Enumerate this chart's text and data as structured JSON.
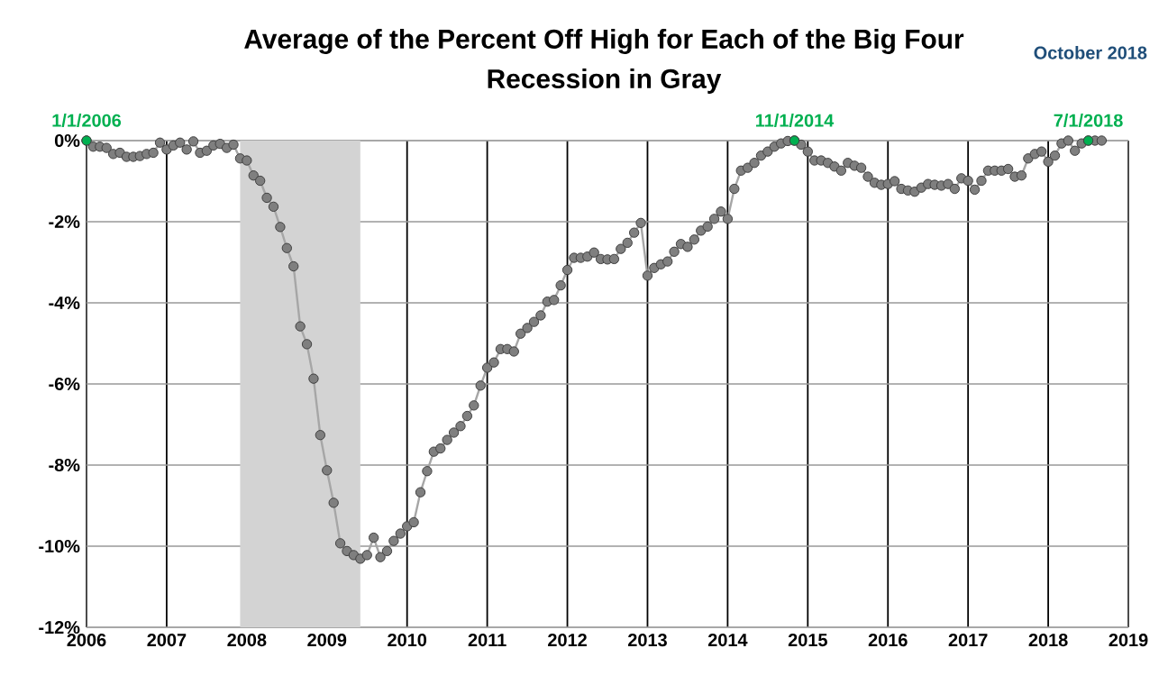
{
  "chart_data": {
    "type": "line",
    "title": "Average of the Percent Off High for Each of the Big Four",
    "subtitle": "Recession in Gray",
    "x": [
      "2006-01",
      "2006-02",
      "2006-03",
      "2006-04",
      "2006-05",
      "2006-06",
      "2006-07",
      "2006-08",
      "2006-09",
      "2006-10",
      "2006-11",
      "2006-12",
      "2007-01",
      "2007-02",
      "2007-03",
      "2007-04",
      "2007-05",
      "2007-06",
      "2007-07",
      "2007-08",
      "2007-09",
      "2007-10",
      "2007-11",
      "2007-12",
      "2008-01",
      "2008-02",
      "2008-03",
      "2008-04",
      "2008-05",
      "2008-06",
      "2008-07",
      "2008-08",
      "2008-09",
      "2008-10",
      "2008-11",
      "2008-12",
      "2009-01",
      "2009-02",
      "2009-03",
      "2009-04",
      "2009-05",
      "2009-06",
      "2009-07",
      "2009-08",
      "2009-09",
      "2009-10",
      "2009-11",
      "2009-12",
      "2010-01",
      "2010-02",
      "2010-03",
      "2010-04",
      "2010-05",
      "2010-06",
      "2010-07",
      "2010-08",
      "2010-09",
      "2010-10",
      "2010-11",
      "2010-12",
      "2011-01",
      "2011-02",
      "2011-03",
      "2011-04",
      "2011-05",
      "2011-06",
      "2011-07",
      "2011-08",
      "2011-09",
      "2011-10",
      "2011-11",
      "2011-12",
      "2012-01",
      "2012-02",
      "2012-03",
      "2012-04",
      "2012-05",
      "2012-06",
      "2012-07",
      "2012-08",
      "2012-09",
      "2012-10",
      "2012-11",
      "2012-12",
      "2013-01",
      "2013-02",
      "2013-03",
      "2013-04",
      "2013-05",
      "2013-06",
      "2013-07",
      "2013-08",
      "2013-09",
      "2013-10",
      "2013-11",
      "2013-12",
      "2014-01",
      "2014-02",
      "2014-03",
      "2014-04",
      "2014-05",
      "2014-06",
      "2014-07",
      "2014-08",
      "2014-09",
      "2014-10",
      "2014-11",
      "2014-12",
      "2015-01",
      "2015-02",
      "2015-03",
      "2015-04",
      "2015-05",
      "2015-06",
      "2015-07",
      "2015-08",
      "2015-09",
      "2015-10",
      "2015-11",
      "2015-12",
      "2016-01",
      "2016-02",
      "2016-03",
      "2016-04",
      "2016-05",
      "2016-06",
      "2016-07",
      "2016-08",
      "2016-09",
      "2016-10",
      "2016-11",
      "2016-12",
      "2017-01",
      "2017-02",
      "2017-03",
      "2017-04",
      "2017-05",
      "2017-06",
      "2017-07",
      "2017-08",
      "2017-09",
      "2017-10",
      "2017-11",
      "2017-12",
      "2018-01",
      "2018-02",
      "2018-03",
      "2018-04",
      "2018-05",
      "2018-06",
      "2018-07",
      "2018-08",
      "2018-09"
    ],
    "series": [
      {
        "color": "#7f7f7f",
        "values": [
          0,
          -0.15,
          -0.15,
          -0.18,
          -0.33,
          -0.3,
          -0.4,
          -0.4,
          -0.38,
          -0.33,
          -0.3,
          -0.05,
          -0.22,
          -0.12,
          -0.05,
          -0.22,
          -0.02,
          -0.3,
          -0.25,
          -0.12,
          -0.08,
          -0.18,
          -0.1,
          -0.44,
          -0.49,
          -0.86,
          -0.99,
          -1.41,
          -1.63,
          -2.13,
          -2.65,
          -3.1,
          -4.58,
          -5.02,
          -5.87,
          -7.26,
          -8.13,
          -8.93,
          -9.93,
          -10.12,
          -10.22,
          -10.31,
          -10.22,
          -9.79,
          -10.27,
          -10.12,
          -9.87,
          -9.69,
          -9.51,
          -9.41,
          -8.67,
          -8.15,
          -7.67,
          -7.59,
          -7.38,
          -7.2,
          -7.04,
          -6.79,
          -6.53,
          -6.04,
          -5.6,
          -5.47,
          -5.14,
          -5.14,
          -5.2,
          -4.76,
          -4.62,
          -4.47,
          -4.31,
          -3.97,
          -3.93,
          -3.57,
          -3.19,
          -2.89,
          -2.89,
          -2.86,
          -2.76,
          -2.92,
          -2.93,
          -2.92,
          -2.67,
          -2.52,
          -2.27,
          -2.03,
          -3.33,
          -3.14,
          -3.05,
          -2.98,
          -2.74,
          -2.55,
          -2.62,
          -2.44,
          -2.22,
          -2.12,
          -1.93,
          -1.75,
          -1.93,
          -1.19,
          -0.74,
          -0.67,
          -0.55,
          -0.37,
          -0.27,
          -0.15,
          -0.07,
          -0.01,
          0,
          -0.1,
          -0.27,
          -0.49,
          -0.49,
          -0.55,
          -0.64,
          -0.74,
          -0.55,
          -0.62,
          -0.67,
          -0.89,
          -1.04,
          -1.09,
          -1.07,
          -1.0,
          -1.19,
          -1.23,
          -1.26,
          -1.16,
          -1.07,
          -1.09,
          -1.11,
          -1.07,
          -1.19,
          -0.93,
          -0.99,
          -1.21,
          -0.99,
          -0.74,
          -0.74,
          -0.74,
          -0.7,
          -0.89,
          -0.86,
          -0.44,
          -0.33,
          -0.27,
          -0.52,
          -0.37,
          -0.07,
          0,
          -0.25,
          -0.07,
          0,
          0,
          0
        ]
      },
      {
        "type": "scatter",
        "color": "#00b050",
        "x": [
          "2006-01",
          "2014-11",
          "2018-07"
        ],
        "values": [
          0,
          0,
          0
        ]
      }
    ],
    "xlim": [
      "2006",
      "2019"
    ],
    "xticks": [
      "2006",
      "2007",
      "2008",
      "2009",
      "2010",
      "2011",
      "2012",
      "2013",
      "2014",
      "2015",
      "2016",
      "2017",
      "2018",
      "2019"
    ],
    "ylim": [
      -12,
      0
    ],
    "yticks": [
      {
        "value": 0,
        "label": "0%"
      },
      {
        "value": -2,
        "label": "-2%"
      },
      {
        "value": -4,
        "label": "-4%"
      },
      {
        "value": -6,
        "label": "-6%"
      },
      {
        "value": -8,
        "label": "-8%"
      },
      {
        "value": -10,
        "label": "-10%"
      },
      {
        "value": -12,
        "label": "-12%"
      }
    ],
    "grid": true,
    "marker": "circle",
    "bands": [
      {
        "axis": "x",
        "from": "2007-12",
        "to": "2009-06",
        "color": "#d3d3d3"
      }
    ],
    "annotations": [
      {
        "text": "1/1/2006",
        "x": "2006-01",
        "y": 0
      },
      {
        "text": "11/1/2014",
        "x": "2014-11",
        "y": 0
      },
      {
        "text": "7/1/2018",
        "x": "2018-07",
        "y": 0
      },
      "October 2018"
    ]
  }
}
